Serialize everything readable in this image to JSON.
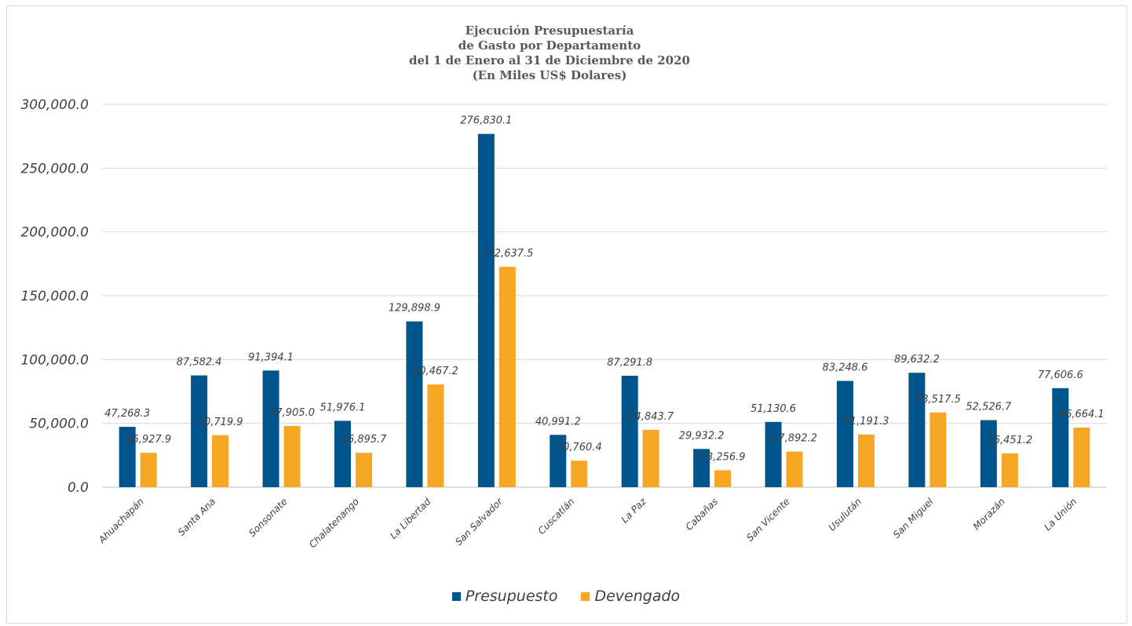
{
  "chart_data": {
    "type": "bar",
    "title_lines": [
      "Ejecución Presupuestaría",
      "de Gasto por Departamento",
      "del 1 de Enero al 31 de Diciembre de 2020",
      "(En Miles US$ Dolares)"
    ],
    "categories": [
      "Ahuachapán",
      "Santa Ana",
      "Sonsonate",
      "Chalatenango",
      "La Libertad",
      "San Salvador",
      "Cuscatlán",
      "La Paz",
      "Cabañas",
      "San Vicente",
      "Usulután",
      "San Miguel",
      "Morazán",
      "La Unión"
    ],
    "series": [
      {
        "name": "Presupuesto",
        "color": "#00568c",
        "values": [
          47268.3,
          87582.4,
          91394.1,
          51976.1,
          129898.9,
          276830.1,
          40991.2,
          87291.8,
          29932.2,
          51130.6,
          83248.6,
          89632.2,
          52526.7,
          77606.6
        ],
        "labels": [
          "47,268.3",
          "87,582.4",
          "91,394.1",
          "51,976.1",
          "129,898.9",
          "276,830.1",
          "40,991.2",
          "87,291.8",
          "29,932.2",
          "51,130.6",
          "83,248.6",
          "89,632.2",
          "52,526.7",
          "77,606.6"
        ]
      },
      {
        "name": "Devengado",
        "color": "#f5a623",
        "values": [
          26927.9,
          40719.9,
          47905.0,
          26895.7,
          80467.2,
          172637.5,
          20760.4,
          44843.7,
          13256.9,
          27892.2,
          41191.3,
          58517.5,
          26451.2,
          46664.1
        ],
        "labels": [
          "26,927.9",
          "40,719.9",
          "47,905.0",
          "26,895.7",
          "80,467.2",
          "172,637.5",
          "20,760.4",
          "44,843.7",
          "13,256.9",
          "27,892.2",
          "41,191.3",
          "58,517.5",
          "26,451.2",
          "46,664.1"
        ]
      }
    ],
    "yticks": [
      "0.0",
      "50,000.0",
      "100,000.0",
      "150,000.0",
      "200,000.0",
      "250,000.0",
      "300,000.0"
    ],
    "ylim": [
      0,
      300000
    ],
    "grid": true,
    "legend_position": "bottom-center"
  }
}
